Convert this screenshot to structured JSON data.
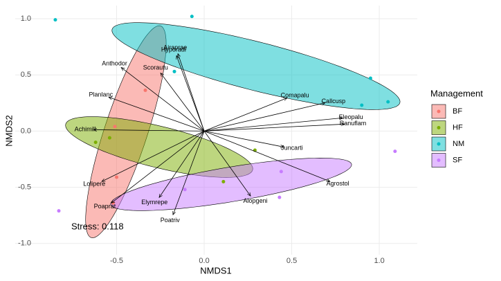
{
  "chart_data": {
    "type": "scatter",
    "xlabel": "NMDS1",
    "ylabel": "NMDS2",
    "xlim": [
      -1.079,
      1.217
    ],
    "ylim": [
      -1.1,
      1.117
    ],
    "xticks": [
      -0.5,
      {
        "value": 0,
        "label": "0.0"
      },
      0.5,
      {
        "value": 1,
        "label": "1.0"
      }
    ],
    "yticks": [
      {
        "value": -1,
        "label": "-1.0"
      },
      -0.5,
      {
        "value": 0,
        "label": "0.0"
      },
      0.5,
      {
        "value": 1,
        "label": "1.0"
      }
    ],
    "grid": true,
    "legend_title": "Management",
    "legend": "right",
    "annotation": "Stress: 0.118",
    "series": [
      {
        "name": "BF",
        "color": "#F8766D",
        "x": [
          -0.336,
          -0.51,
          -0.5,
          -0.52
        ],
        "y": [
          0.363,
          0.04,
          -0.41,
          -0.64
        ],
        "ellipse": {
          "center": [
            -0.447,
            -0.006
          ],
          "axis1": [
            0.198,
            0.942
          ],
          "axis2": [
            0.117,
            -0.059
          ]
        }
      },
      {
        "name": "HF",
        "color": "#7CAE00",
        "x": [
          -0.62,
          -0.54,
          0.29,
          0.11
        ],
        "y": [
          -0.1,
          -0.06,
          -0.17,
          -0.45
        ],
        "ellipse": {
          "center": [
            -0.257,
            -0.142
          ],
          "axis1": [
            0.534,
            -0.203
          ],
          "axis2": [
            -0.028,
            -0.179
          ]
        }
      },
      {
        "name": "NM",
        "color": "#00BFC4",
        "x": [
          -0.85,
          -0.07,
          -0.17,
          0.95,
          0.9,
          1.05
        ],
        "y": [
          0.99,
          1.02,
          0.53,
          0.47,
          0.23,
          0.26
        ],
        "ellipse": {
          "center": [
            0.296,
            0.578
          ],
          "axis1": [
            0.822,
            -0.326
          ],
          "axis2": [
            -0.034,
            -0.209
          ]
        }
      },
      {
        "name": "SF",
        "color": "#C77CFF",
        "x": [
          -0.83,
          -0.11,
          0.44,
          0.43,
          1.09
        ],
        "y": [
          -0.71,
          -0.52,
          -0.36,
          -0.59,
          -0.18
        ],
        "ellipse": {
          "center": [
            0.154,
            -0.474
          ],
          "axis1": [
            0.688,
            0.178
          ],
          "axis2": [
            0.016,
            -0.152
          ]
        }
      }
    ],
    "vectors": {
      "labels": [
        "Anthodor",
        "Airaprae",
        "Hyporadi",
        "Scorautu",
        "Comapalu",
        "Callcusp",
        "Eleopalu",
        "Ranuflam",
        "Planlanc",
        "Achimill",
        "Juncarti",
        "Agrostol",
        "Lolipere",
        "Poaprat",
        "Elymrepe",
        "Alopgeni",
        "Poatriv"
      ],
      "x": [
        -0.474,
        -0.15,
        -0.158,
        -0.249,
        0.474,
        0.692,
        0.791,
        0.802,
        -0.545,
        -0.632,
        0.455,
        0.719,
        -0.585,
        -0.53,
        -0.257,
        0.265,
        -0.178
      ],
      "y": [
        0.566,
        0.689,
        0.671,
        0.517,
        0.295,
        0.252,
        0.117,
        0.062,
        0.302,
        0.012,
        -0.142,
        -0.449,
        -0.449,
        -0.64,
        -0.591,
        -0.578,
        -0.745
      ]
    }
  }
}
